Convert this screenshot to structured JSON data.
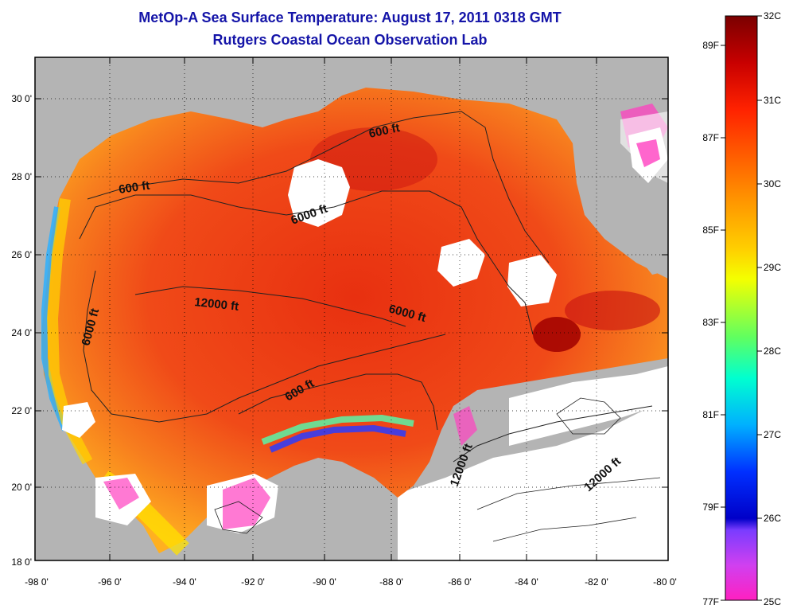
{
  "title": "MetOp-A Sea Surface Temperature:  August 17, 2011 0318 GMT",
  "subtitle": "Rutgers Coastal Ocean Observation Lab",
  "map": {
    "lon_labels": [
      "-98 0'",
      "-96 0'",
      "-94 0'",
      "-92 0'",
      "-90 0'",
      "-88 0'",
      "-86 0'",
      "-84 0'",
      "-82 0'",
      "-80 0'"
    ],
    "lat_labels": [
      "30 0'",
      "28 0'",
      "26 0'",
      "24 0'",
      "22 0'",
      "20 0'",
      "18 0'"
    ],
    "lon_range": [
      -98,
      -80
    ],
    "lat_range": [
      18,
      31
    ],
    "contour_labels": [
      {
        "text": "600 ft"
      },
      {
        "text": "600 ft"
      },
      {
        "text": "6000 ft"
      },
      {
        "text": "12000 ft"
      },
      {
        "text": "6000 ft"
      },
      {
        "text": "6000 ft"
      },
      {
        "text": "600 ft"
      },
      {
        "text": "12000 ft"
      },
      {
        "text": "12000 ft"
      }
    ],
    "colors": {
      "land": "#b4b4b4",
      "cloud": "#ffffff",
      "sst_dominant": "#ee3a12"
    }
  },
  "colorbar": {
    "celsius_labels": [
      "32C",
      "31C",
      "30C",
      "29C",
      "28C",
      "27C",
      "26C",
      "25C"
    ],
    "fahrenheit_labels": [
      "89F",
      "87F",
      "85F",
      "83F",
      "81F",
      "79F",
      "77F"
    ],
    "celsius_range": [
      25,
      32
    ],
    "fahrenheit_range": [
      77,
      89.6
    ]
  }
}
